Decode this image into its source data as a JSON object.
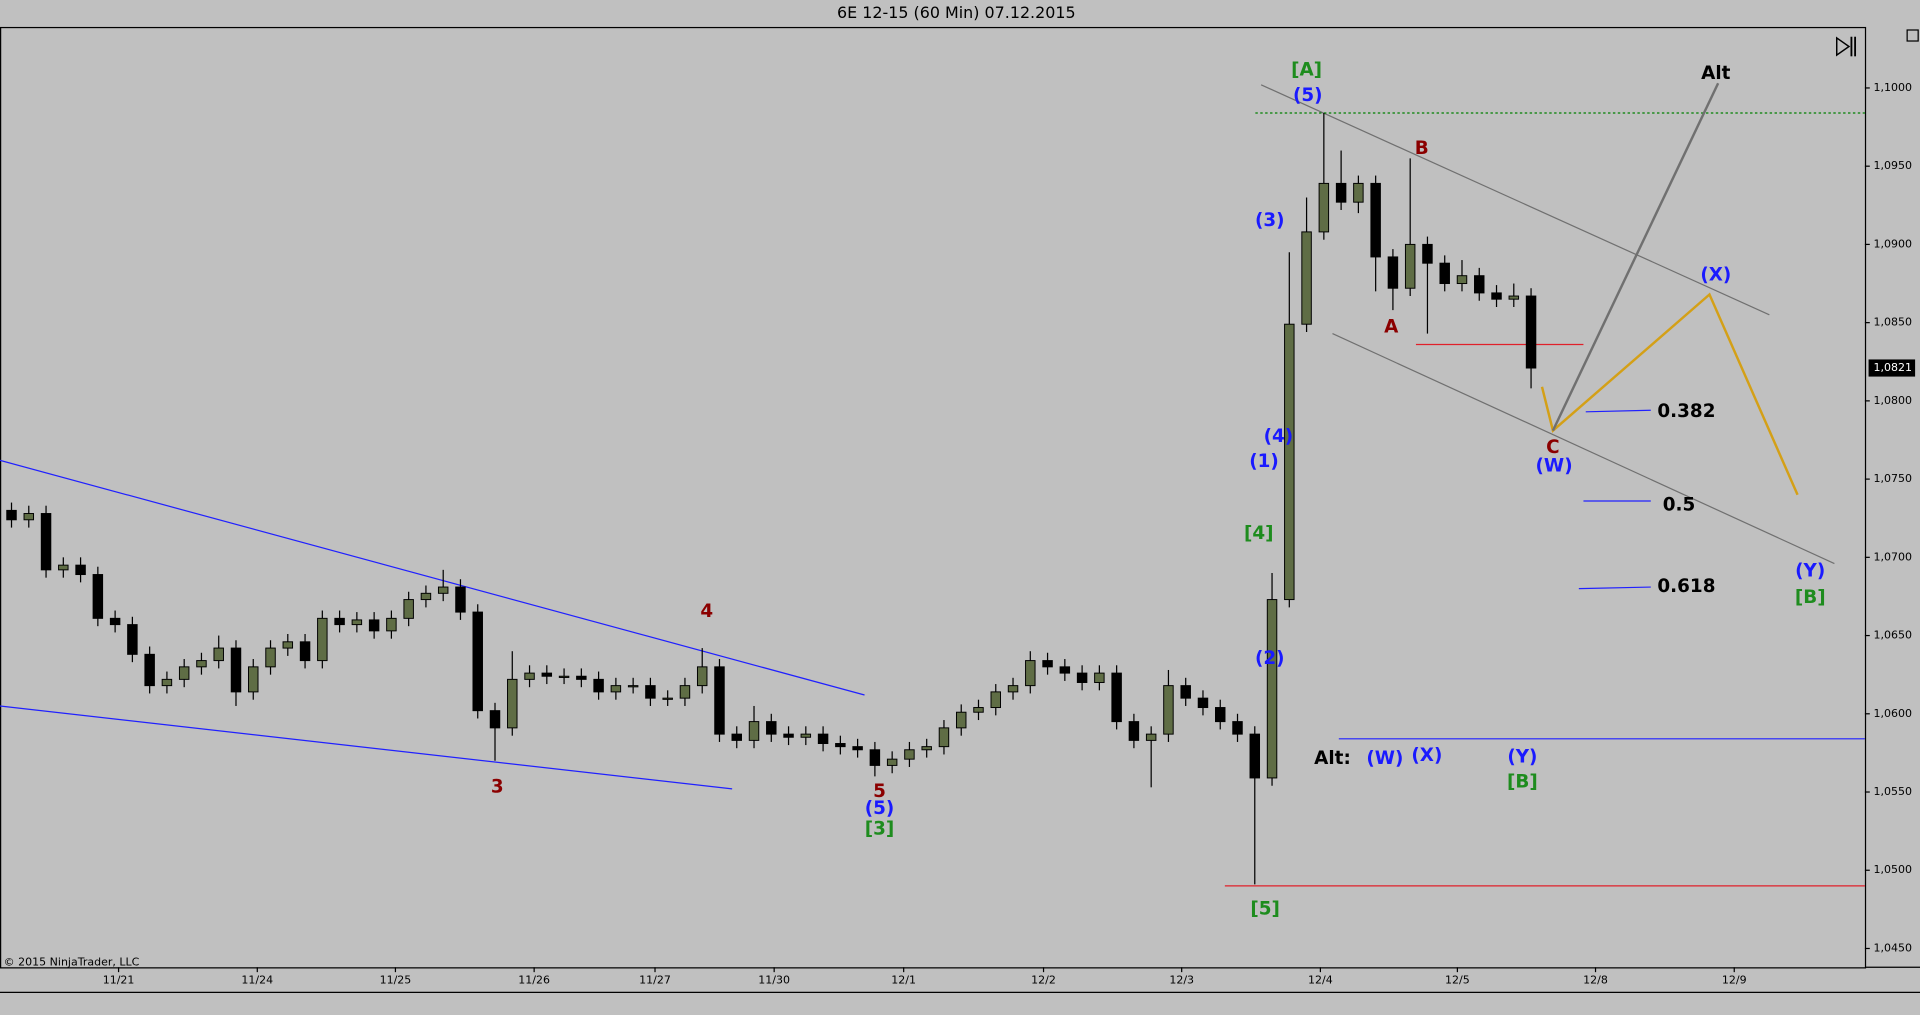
{
  "chart_data": {
    "type": "candlestick",
    "title": "6E 12-15 (60 Min)  07.12.2015",
    "copyright": "© 2015 NinjaTrader, LLC",
    "up_color": "#5f6d45",
    "down_color": "#000000",
    "xlim": [
      0,
      324
    ],
    "ylim": [
      1.0438,
      1.1039
    ],
    "xticks": [
      {
        "value": 20.6,
        "label": "11/21"
      },
      {
        "value": 44.7,
        "label": "11/24"
      },
      {
        "value": 68.7,
        "label": "11/25"
      },
      {
        "value": 92.8,
        "label": "11/26"
      },
      {
        "value": 113.8,
        "label": "11/27"
      },
      {
        "value": 134.5,
        "label": "11/30"
      },
      {
        "value": 157,
        "label": "12/1"
      },
      {
        "value": 181.3,
        "label": "12/2"
      },
      {
        "value": 205.3,
        "label": "12/3"
      },
      {
        "value": 229.4,
        "label": "12/4"
      },
      {
        "value": 253.2,
        "label": "12/5"
      },
      {
        "value": 277.2,
        "label": "12/8"
      },
      {
        "value": 301.3,
        "label": "12/9"
      }
    ],
    "yticks": [
      {
        "value": 1.045,
        "label": "1,0450"
      },
      {
        "value": 1.05,
        "label": "1,0500"
      },
      {
        "value": 1.055,
        "label": "1,0550"
      },
      {
        "value": 1.06,
        "label": "1,0600"
      },
      {
        "value": 1.065,
        "label": "1,0650"
      },
      {
        "value": 1.07,
        "label": "1,0700"
      },
      {
        "value": 1.075,
        "label": "1,0750"
      },
      {
        "value": 1.08,
        "label": "1,0800"
      },
      {
        "value": 1.085,
        "label": "1,0850"
      },
      {
        "value": 1.09,
        "label": "1,0900"
      },
      {
        "value": 1.095,
        "label": "1,0950"
      },
      {
        "value": 1.1,
        "label": "1,1000"
      }
    ],
    "last_price": {
      "value": 1.0821,
      "label": "1,0821"
    },
    "x": [
      2,
      5,
      8,
      11,
      14,
      17,
      20,
      23,
      26,
      29,
      32,
      35,
      38,
      41,
      44,
      47,
      50,
      53,
      56,
      59,
      62,
      65,
      68,
      71,
      74,
      77,
      80,
      83,
      86,
      89,
      92,
      95,
      98,
      101,
      104,
      107,
      110,
      113,
      116,
      119,
      122,
      125,
      128,
      131,
      134,
      137,
      140,
      143,
      146,
      149,
      152,
      155,
      158,
      161,
      164,
      167,
      170,
      173,
      176,
      179,
      182,
      185,
      188,
      191,
      194,
      197,
      200,
      203,
      206,
      209,
      212,
      215,
      218,
      221,
      224,
      227,
      230,
      233,
      236,
      239,
      242,
      245,
      248,
      251,
      254,
      257,
      260,
      263,
      266
    ],
    "open": [
      1.073,
      1.0724,
      1.0728,
      1.0692,
      1.0695,
      1.0689,
      1.0661,
      1.0657,
      1.0638,
      1.0618,
      1.0622,
      1.063,
      1.0634,
      1.0642,
      1.0614,
      1.063,
      1.0642,
      1.0646,
      1.0634,
      1.0661,
      1.0657,
      1.066,
      1.0653,
      1.0661,
      1.0673,
      1.0677,
      1.0681,
      1.0665,
      1.0602,
      1.0591,
      1.0622,
      1.0626,
      1.0624,
      1.0624,
      1.0622,
      1.0614,
      1.0618,
      1.0618,
      1.061,
      1.061,
      1.0618,
      1.063,
      1.0587,
      1.0583,
      1.0595,
      1.0587,
      1.0585,
      1.0587,
      1.0581,
      1.0579,
      1.0577,
      1.0567,
      1.0571,
      1.0577,
      1.0579,
      1.0591,
      1.0601,
      1.0604,
      1.0614,
      1.0618,
      1.0634,
      1.063,
      1.0626,
      1.062,
      1.0626,
      1.0595,
      1.0583,
      1.0587,
      1.0618,
      1.061,
      1.0604,
      1.0595,
      1.0587,
      1.0559,
      1.0673,
      1.0849,
      1.0908,
      1.0939,
      1.0927,
      1.0939,
      1.0892,
      1.0872,
      1.09,
      1.0888,
      1.0875,
      1.088,
      1.0869,
      1.0865,
      1.0867
    ],
    "high": [
      1.0735,
      1.0733,
      1.0733,
      1.07,
      1.07,
      1.0694,
      1.0666,
      1.0662,
      1.0643,
      1.0627,
      1.0635,
      1.0639,
      1.065,
      1.0647,
      1.0635,
      1.0647,
      1.0651,
      1.0651,
      1.0666,
      1.0666,
      1.0665,
      1.0665,
      1.0666,
      1.0678,
      1.0682,
      1.0692,
      1.0686,
      1.067,
      1.0607,
      1.064,
      1.0631,
      1.0631,
      1.0629,
      1.0629,
      1.0627,
      1.0623,
      1.0623,
      1.0623,
      1.0615,
      1.0623,
      1.0642,
      1.0635,
      1.0592,
      1.0605,
      1.06,
      1.0592,
      1.0592,
      1.0592,
      1.0586,
      1.0584,
      1.0582,
      1.0576,
      1.0582,
      1.0584,
      1.0596,
      1.0606,
      1.0609,
      1.0619,
      1.0623,
      1.064,
      1.0639,
      1.0635,
      1.0631,
      1.0631,
      1.0631,
      1.06,
      1.0592,
      1.0628,
      1.0623,
      1.0615,
      1.0609,
      1.06,
      1.0592,
      1.069,
      1.0895,
      1.093,
      1.0984,
      1.096,
      1.0944,
      1.0944,
      1.0897,
      1.0955,
      1.0905,
      1.0893,
      1.089,
      1.0885,
      1.0874,
      1.0875,
      1.0872
    ],
    "low": [
      1.0719,
      1.0719,
      1.0687,
      1.0687,
      1.0684,
      1.0656,
      1.0652,
      1.0633,
      1.0613,
      1.0613,
      1.0617,
      1.0625,
      1.0629,
      1.0605,
      1.0609,
      1.0625,
      1.0637,
      1.0629,
      1.0629,
      1.0652,
      1.0652,
      1.0648,
      1.0648,
      1.0656,
      1.0668,
      1.0672,
      1.066,
      1.0597,
      1.057,
      1.0586,
      1.0617,
      1.0619,
      1.0619,
      1.0617,
      1.0609,
      1.0609,
      1.0613,
      1.0605,
      1.0605,
      1.0605,
      1.0613,
      1.0582,
      1.0578,
      1.0578,
      1.0582,
      1.058,
      1.058,
      1.0576,
      1.0574,
      1.0572,
      1.056,
      1.0562,
      1.0566,
      1.0572,
      1.0574,
      1.0586,
      1.0596,
      1.0599,
      1.0609,
      1.0613,
      1.0625,
      1.0621,
      1.0615,
      1.0615,
      1.059,
      1.0578,
      1.0553,
      1.0582,
      1.0605,
      1.0599,
      1.059,
      1.0582,
      1.0491,
      1.0554,
      1.0668,
      1.0844,
      1.0903,
      1.0922,
      1.092,
      1.087,
      1.0858,
      1.0867,
      1.0843,
      1.087,
      1.087,
      1.0864,
      1.086,
      1.086,
      1.0808
    ],
    "close": [
      1.0724,
      1.0728,
      1.0692,
      1.0695,
      1.0689,
      1.0661,
      1.0657,
      1.0638,
      1.0618,
      1.0622,
      1.063,
      1.0634,
      1.0642,
      1.0614,
      1.063,
      1.0642,
      1.0646,
      1.0634,
      1.0661,
      1.0657,
      1.066,
      1.0653,
      1.0661,
      1.0673,
      1.0677,
      1.0681,
      1.0665,
      1.0602,
      1.0591,
      1.0622,
      1.0626,
      1.0624,
      1.0624,
      1.0622,
      1.0614,
      1.0618,
      1.0618,
      1.061,
      1.061,
      1.0618,
      1.063,
      1.0587,
      1.0583,
      1.0595,
      1.0587,
      1.0585,
      1.0587,
      1.0581,
      1.0579,
      1.0577,
      1.0567,
      1.0571,
      1.0577,
      1.0579,
      1.0591,
      1.0601,
      1.0604,
      1.0614,
      1.0618,
      1.0634,
      1.063,
      1.0626,
      1.062,
      1.0626,
      1.0595,
      1.0583,
      1.0587,
      1.0618,
      1.061,
      1.0604,
      1.0595,
      1.0587,
      1.0559,
      1.0673,
      1.0849,
      1.0908,
      1.0939,
      1.0927,
      1.0939,
      1.0892,
      1.0872,
      1.09,
      1.0888,
      1.0875,
      1.088,
      1.0869,
      1.0865,
      1.0867,
      1.0821
    ],
    "lines": [
      {
        "x": [
          0,
          150.2
        ],
        "y": [
          1.0762,
          1.0612
        ],
        "color": "#2020ff"
      },
      {
        "x": [
          0,
          127.2
        ],
        "y": [
          1.0605,
          1.0552
        ],
        "color": "#2020ff"
      },
      {
        "x": [
          219.1,
          307.4
        ],
        "y": [
          1.1002,
          1.0855
        ],
        "color": "#707070"
      },
      {
        "x": [
          231.5,
          318.7
        ],
        "y": [
          1.0843,
          1.0696
        ],
        "color": "#707070"
      },
      {
        "x": [
          218.1,
          324
        ],
        "y": [
          1.0984,
          1.0984
        ],
        "color": "#008000",
        "dashed": true
      },
      {
        "x": [
          246,
          275.1
        ],
        "y": [
          1.0836,
          1.0836
        ],
        "color": "#e0202a"
      },
      {
        "x": [
          212.8,
          324
        ],
        "y": [
          1.049,
          1.049
        ],
        "color": "#e0202a"
      },
      {
        "x": [
          232.6,
          324
        ],
        "y": [
          1.0584,
          1.0584
        ],
        "color": "#2020ff"
      },
      {
        "x": [
          275.5,
          286.8
        ],
        "y": [
          1.0793,
          1.0794
        ],
        "color": "#2020ff"
      },
      {
        "x": [
          275.1,
          286.8
        ],
        "y": [
          1.0736,
          1.0736
        ],
        "color": "#2020ff"
      },
      {
        "x": [
          274.3,
          286.8
        ],
        "y": [
          1.068,
          1.0681
        ],
        "color": "#2020ff"
      },
      {
        "x": [
          267.9,
          269.8,
          297,
          312.3
        ],
        "y": [
          1.0809,
          1.0781,
          1.0868,
          1.074
        ],
        "color": "#d4a017",
        "width": 2
      },
      {
        "x": [
          269.8,
          298.5
        ],
        "y": [
          1.0781,
          1.1003
        ],
        "color": "#707070",
        "width": 2
      }
    ],
    "annotations": [
      {
        "text": "[A]",
        "x": 227,
        "y": 1.1011,
        "color": "#1e8c1e",
        "bold": true
      },
      {
        "text": "(5)",
        "x": 227.2,
        "y": 1.0995,
        "color": "#1a1aff",
        "bold": true
      },
      {
        "text": "B",
        "x": 247,
        "y": 1.0961,
        "color": "#8b0000",
        "bold": true
      },
      {
        "text": "Alt",
        "x": 298.1,
        "y": 1.1009,
        "color": "#000000",
        "bold": true
      },
      {
        "text": "(3)",
        "x": 220.6,
        "y": 1.0915,
        "color": "#1a1aff",
        "bold": true
      },
      {
        "text": "A",
        "x": 241.7,
        "y": 1.0847,
        "color": "#8b0000",
        "bold": true
      },
      {
        "text": "(X)",
        "x": 298.1,
        "y": 1.088,
        "color": "#1a1aff",
        "bold": true
      },
      {
        "text": "0.382",
        "x": 293,
        "y": 1.0793,
        "color": "#000000",
        "bold": true
      },
      {
        "text": "C",
        "x": 269.8,
        "y": 1.077,
        "color": "#8b0000",
        "bold": true
      },
      {
        "text": "(W)",
        "x": 270,
        "y": 1.0758,
        "color": "#1a1aff",
        "bold": true
      },
      {
        "text": "(4)",
        "x": 222.1,
        "y": 1.0777,
        "color": "#1a1aff",
        "bold": true
      },
      {
        "text": "(1)",
        "x": 219.6,
        "y": 1.0761,
        "color": "#1a1aff",
        "bold": true
      },
      {
        "text": "0.5",
        "x": 291.7,
        "y": 1.0733,
        "color": "#000000",
        "bold": true
      },
      {
        "text": "[4]",
        "x": 218.7,
        "y": 1.0715,
        "color": "#1e8c1e",
        "bold": true
      },
      {
        "text": "(Y)",
        "x": 314.5,
        "y": 1.0691,
        "color": "#1a1aff",
        "bold": true
      },
      {
        "text": "[B]",
        "x": 314.5,
        "y": 1.0674,
        "color": "#1e8c1e",
        "bold": true
      },
      {
        "text": "0.618",
        "x": 293,
        "y": 1.0681,
        "color": "#000000",
        "bold": true
      },
      {
        "text": "4",
        "x": 122.8,
        "y": 1.0665,
        "color": "#8b0000",
        "bold": true
      },
      {
        "text": "(2)",
        "x": 220.6,
        "y": 1.0635,
        "color": "#1a1aff",
        "bold": true
      },
      {
        "text": "3",
        "x": 86.4,
        "y": 1.0553,
        "color": "#8b0000",
        "bold": true
      },
      {
        "text": "Alt:",
        "x": 231.5,
        "y": 1.0571,
        "color": "#000000",
        "bold": true
      },
      {
        "text": "(W)",
        "x": 240.6,
        "y": 1.0571,
        "color": "#1a1aff",
        "bold": true
      },
      {
        "text": "(X)",
        "x": 247.9,
        "y": 1.0573,
        "color": "#1a1aff",
        "bold": true
      },
      {
        "text": "(Y)",
        "x": 264.5,
        "y": 1.0572,
        "color": "#1a1aff",
        "bold": true
      },
      {
        "text": "[B]",
        "x": 264.5,
        "y": 1.0556,
        "color": "#1e8c1e",
        "bold": true
      },
      {
        "text": "5",
        "x": 152.8,
        "y": 1.055,
        "color": "#8b0000",
        "bold": true
      },
      {
        "text": "(5)",
        "x": 152.8,
        "y": 1.0539,
        "color": "#1a1aff",
        "bold": true
      },
      {
        "text": "[3]",
        "x": 152.8,
        "y": 1.0526,
        "color": "#1e8c1e",
        "bold": true
      },
      {
        "text": "[5]",
        "x": 219.8,
        "y": 1.0475,
        "color": "#1e8c1e",
        "bold": true
      }
    ]
  }
}
